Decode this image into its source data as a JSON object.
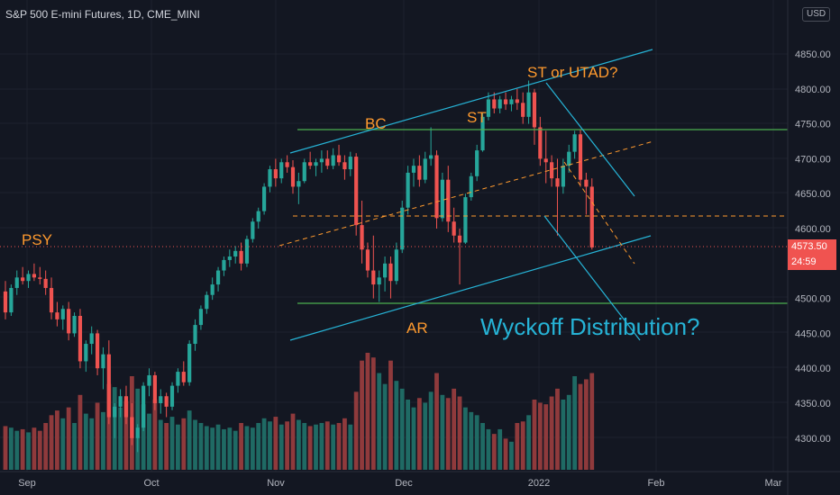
{
  "header": {
    "symbol_title": "S&P 500 E-mini Futures, 1D, CME_MINI",
    "currency": "USD"
  },
  "price_axis": {
    "current_price": "4573.50",
    "countdown": "24:59"
  },
  "colors": {
    "background": "#131722",
    "up": "#26a69a",
    "down": "#ef5350",
    "volume_up": "#1f6a64",
    "volume_down": "#8f3a3c",
    "channel": "#26b3d6",
    "support_resistance": "#4caf50",
    "annotation": "#ff9a2e",
    "wyckoff_text": "#26b3d6"
  },
  "chart_data": {
    "type": "candlestick",
    "title": "S&P 500 E-mini Futures, 1D, CME_MINI",
    "ylim": [
      4270,
      4930
    ],
    "y_ticks": [
      "4850.00",
      "4800.00",
      "4750.00",
      "4700.00",
      "4650.00",
      "4600.00",
      "4500.00",
      "4450.00",
      "4400.00",
      "4350.00",
      "4300.00"
    ],
    "x_ticks": [
      "Sep",
      "Oct",
      "Nov",
      "Dec",
      "2022",
      "Feb",
      "Mar"
    ],
    "annotations": [
      "PSY",
      "BC",
      "ST",
      "ST or UTAD?",
      "AR",
      "Wyckoff Distribution?"
    ],
    "price_levels": [
      4743,
      4617,
      4490
    ],
    "candles": [
      [
        4510,
        4525,
        4470,
        4480
      ],
      [
        4480,
        4520,
        4475,
        4515
      ],
      [
        4515,
        4540,
        4505,
        4530
      ],
      [
        4530,
        4545,
        4520,
        4525
      ],
      [
        4525,
        4540,
        4515,
        4535
      ],
      [
        4535,
        4550,
        4525,
        4530
      ],
      [
        4530,
        4545,
        4520,
        4528
      ],
      [
        4528,
        4540,
        4505,
        4515
      ],
      [
        4515,
        4530,
        4470,
        4480
      ],
      [
        4480,
        4495,
        4460,
        4470
      ],
      [
        4470,
        4490,
        4455,
        4485
      ],
      [
        4485,
        4495,
        4440,
        4450
      ],
      [
        4450,
        4480,
        4445,
        4475
      ],
      [
        4475,
        4485,
        4400,
        4410
      ],
      [
        4410,
        4440,
        4395,
        4435
      ],
      [
        4435,
        4460,
        4420,
        4450
      ],
      [
        4450,
        4455,
        4390,
        4400
      ],
      [
        4400,
        4430,
        4370,
        4420
      ],
      [
        4420,
        4440,
        4320,
        4330
      ],
      [
        4330,
        4350,
        4300,
        4345
      ],
      [
        4345,
        4370,
        4330,
        4360
      ],
      [
        4360,
        4375,
        4320,
        4330
      ],
      [
        4330,
        4350,
        4290,
        4300
      ],
      [
        4300,
        4320,
        4280,
        4315
      ],
      [
        4315,
        4380,
        4310,
        4375
      ],
      [
        4375,
        4400,
        4360,
        4390
      ],
      [
        4390,
        4395,
        4340,
        4350
      ],
      [
        4350,
        4370,
        4335,
        4360
      ],
      [
        4360,
        4365,
        4330,
        4345
      ],
      [
        4345,
        4380,
        4340,
        4375
      ],
      [
        4375,
        4400,
        4365,
        4395
      ],
      [
        4395,
        4410,
        4375,
        4380
      ],
      [
        4380,
        4440,
        4375,
        4435
      ],
      [
        4435,
        4470,
        4425,
        4462
      ],
      [
        4462,
        4490,
        4455,
        4485
      ],
      [
        4485,
        4510,
        4478,
        4505
      ],
      [
        4505,
        4530,
        4498,
        4520
      ],
      [
        4520,
        4545,
        4510,
        4540
      ],
      [
        4540,
        4560,
        4532,
        4555
      ],
      [
        4555,
        4570,
        4545,
        4560
      ],
      [
        4560,
        4575,
        4550,
        4568
      ],
      [
        4568,
        4580,
        4540,
        4550
      ],
      [
        4550,
        4590,
        4545,
        4585
      ],
      [
        4585,
        4615,
        4580,
        4610
      ],
      [
        4610,
        4630,
        4600,
        4625
      ],
      [
        4625,
        4665,
        4620,
        4660
      ],
      [
        4660,
        4690,
        4652,
        4685
      ],
      [
        4685,
        4700,
        4660,
        4672
      ],
      [
        4672,
        4700,
        4665,
        4695
      ],
      [
        4695,
        4705,
        4680,
        4688
      ],
      [
        4688,
        4698,
        4650,
        4660
      ],
      [
        4660,
        4680,
        4635,
        4668
      ],
      [
        4668,
        4700,
        4665,
        4695
      ],
      [
        4695,
        4710,
        4685,
        4690
      ],
      [
        4690,
        4700,
        4675,
        4695
      ],
      [
        4695,
        4712,
        4680,
        4700
      ],
      [
        4700,
        4712,
        4685,
        4690
      ],
      [
        4690,
        4715,
        4685,
        4705
      ],
      [
        4705,
        4720,
        4690,
        4695
      ],
      [
        4695,
        4705,
        4670,
        4685
      ],
      [
        4685,
        4710,
        4675,
        4703
      ],
      [
        4703,
        4708,
        4590,
        4605
      ],
      [
        4605,
        4640,
        4550,
        4570
      ],
      [
        4570,
        4580,
        4530,
        4540
      ],
      [
        4540,
        4590,
        4500,
        4520
      ],
      [
        4520,
        4540,
        4495,
        4530
      ],
      [
        4530,
        4560,
        4510,
        4550
      ],
      [
        4550,
        4560,
        4500,
        4525
      ],
      [
        4525,
        4580,
        4520,
        4570
      ],
      [
        4570,
        4640,
        4565,
        4630
      ],
      [
        4630,
        4690,
        4620,
        4680
      ],
      [
        4680,
        4700,
        4660,
        4690
      ],
      [
        4690,
        4705,
        4660,
        4670
      ],
      [
        4670,
        4710,
        4665,
        4700
      ],
      [
        4700,
        4745,
        4690,
        4705
      ],
      [
        4705,
        4712,
        4600,
        4615
      ],
      [
        4615,
        4680,
        4610,
        4670
      ],
      [
        4670,
        4690,
        4595,
        4610
      ],
      [
        4610,
        4630,
        4580,
        4590
      ],
      [
        4590,
        4600,
        4520,
        4580
      ],
      [
        4580,
        4650,
        4578,
        4645
      ],
      [
        4645,
        4680,
        4640,
        4675
      ],
      [
        4675,
        4720,
        4668,
        4712
      ],
      [
        4712,
        4765,
        4710,
        4760
      ],
      [
        4760,
        4795,
        4755,
        4785
      ],
      [
        4785,
        4795,
        4765,
        4772
      ],
      [
        4772,
        4790,
        4765,
        4785
      ],
      [
        4785,
        4795,
        4770,
        4778
      ],
      [
        4778,
        4790,
        4768,
        4785
      ],
      [
        4785,
        4800,
        4770,
        4780
      ],
      [
        4780,
        4795,
        4750,
        4760
      ],
      [
        4760,
        4812,
        4750,
        4795
      ],
      [
        4795,
        4800,
        4720,
        4745
      ],
      [
        4745,
        4760,
        4690,
        4700
      ],
      [
        4700,
        4740,
        4665,
        4695
      ],
      [
        4695,
        4705,
        4660,
        4672
      ],
      [
        4672,
        4700,
        4590,
        4660
      ],
      [
        4660,
        4700,
        4650,
        4690
      ],
      [
        4690,
        4720,
        4680,
        4710
      ],
      [
        4710,
        4740,
        4700,
        4735
      ],
      [
        4735,
        4742,
        4660,
        4670
      ],
      [
        4670,
        4680,
        4620,
        4660
      ],
      [
        4660,
        4672,
        4570,
        4573
      ]
    ],
    "volume": [
      28,
      27,
      25,
      26,
      24,
      27,
      25,
      30,
      35,
      38,
      33,
      40,
      30,
      48,
      36,
      33,
      43,
      37,
      55,
      53,
      40,
      44,
      60,
      52,
      42,
      36,
      45,
      32,
      30,
      34,
      29,
      33,
      38,
      32,
      30,
      28,
      27,
      29,
      26,
      27,
      25,
      30,
      28,
      27,
      30,
      33,
      31,
      34,
      29,
      31,
      36,
      32,
      30,
      28,
      29,
      30,
      31,
      29,
      30,
      33,
      29,
      50,
      70,
      75,
      72,
      62,
      55,
      70,
      57,
      52,
      45,
      40,
      46,
      43,
      50,
      62,
      48,
      46,
      52,
      47,
      40,
      37,
      35,
      30,
      26,
      23,
      26,
      20,
      18,
      30,
      31,
      35,
      45,
      43,
      42,
      47,
      52,
      45,
      48,
      60,
      55,
      58,
      62
    ]
  }
}
